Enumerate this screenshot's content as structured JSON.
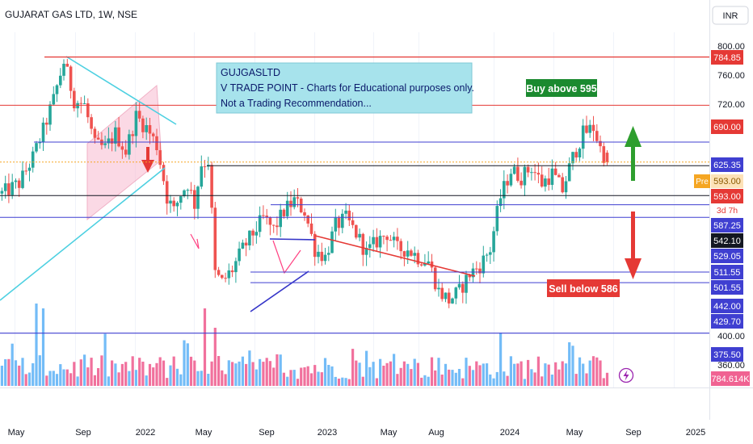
{
  "header": {
    "symbol_title": "GUJARAT GAS LTD, 1W, NSE",
    "currency": "INR"
  },
  "annotations": {
    "info_box": {
      "line1": "GUJGASLTD",
      "line2": "V TRADE POINT - Charts for Educational purposes only.",
      "line3": "Not a Trading Recommendation..."
    },
    "buy_label": "Buy above 595",
    "sell_label": "Sell below 586"
  },
  "colors": {
    "up": "#26a69a",
    "down": "#ef5350",
    "res": "#e53935",
    "sup": "#3f3fd1",
    "trend": "#4dd0e1",
    "channel": "#f8bbd0",
    "vol_up": "#64b5f6",
    "vol_down": "#f06292",
    "buy_bg": "#1b8a2f",
    "sell_bg": "#e53935",
    "info_bg": "#a7e3ec"
  },
  "chart_data": {
    "type": "candlestick",
    "y_scale": "log",
    "ylim": [
      345,
      810
    ],
    "y_ticks": [
      "800.00",
      "760.00",
      "720.00",
      "400.00",
      "360.00"
    ],
    "x_ticks": [
      "May",
      "Sep",
      "2022",
      "May",
      "Sep",
      "2023",
      "May",
      "Aug",
      "2024",
      "May",
      "Sep",
      "2025"
    ],
    "x_range": [
      "2021-04-01",
      "2025-03-15"
    ],
    "levels": [
      {
        "price": 784.85,
        "label": "784.85",
        "role": "resistance"
      },
      {
        "price": 690.0,
        "label": "690.00",
        "role": "resistance"
      },
      {
        "price": 625.35,
        "label": "625.35",
        "role": "support"
      },
      {
        "price": 593.0,
        "label": "593.00",
        "role": "last"
      },
      {
        "price": 587.25,
        "label": "587.25",
        "role": "support"
      },
      {
        "price": 542.1,
        "label": "542.10",
        "role": "neutral"
      },
      {
        "price": 529.05,
        "label": "529.05",
        "role": "support"
      },
      {
        "price": 511.55,
        "label": "511.55",
        "role": "support"
      },
      {
        "price": 501.55,
        "label": "501.55",
        "role": "support"
      },
      {
        "price": 442.0,
        "label": "442.00",
        "role": "support"
      },
      {
        "price": 429.7,
        "label": "429.70",
        "role": "support"
      },
      {
        "price": 375.5,
        "label": "375.50",
        "role": "support"
      }
    ],
    "premarket": {
      "tag": "Pre",
      "price": "593.00"
    },
    "countdown": "3d 7h",
    "volume_label": "784.614K",
    "price_anchors": [
      [
        "2021-04-05",
        545
      ],
      [
        "2021-05-10",
        560
      ],
      [
        "2021-06-07",
        600
      ],
      [
        "2021-06-28",
        645
      ],
      [
        "2021-07-19",
        700
      ],
      [
        "2021-08-09",
        775
      ],
      [
        "2021-08-30",
        700
      ],
      [
        "2021-09-20",
        690
      ],
      [
        "2021-10-11",
        620
      ],
      [
        "2021-11-01",
        615
      ],
      [
        "2021-11-22",
        640
      ],
      [
        "2021-12-13",
        610
      ],
      [
        "2022-01-03",
        670
      ],
      [
        "2022-01-24",
        650
      ],
      [
        "2022-02-14",
        620
      ],
      [
        "2022-03-07",
        540
      ],
      [
        "2022-03-21",
        520
      ],
      [
        "2022-04-04",
        545
      ],
      [
        "2022-04-18",
        560
      ],
      [
        "2022-05-02",
        530
      ],
      [
        "2022-05-16",
        590
      ],
      [
        "2022-05-30",
        595
      ],
      [
        "2022-06-13",
        440
      ],
      [
        "2022-06-27",
        430
      ],
      [
        "2022-07-18",
        445
      ],
      [
        "2022-08-08",
        470
      ],
      [
        "2022-08-29",
        490
      ],
      [
        "2022-09-19",
        510
      ],
      [
        "2022-10-10",
        495
      ],
      [
        "2022-10-31",
        520
      ],
      [
        "2022-11-21",
        535
      ],
      [
        "2022-12-12",
        520
      ],
      [
        "2023-01-02",
        470
      ],
      [
        "2023-01-23",
        460
      ],
      [
        "2023-02-13",
        500
      ],
      [
        "2023-03-06",
        510
      ],
      [
        "2023-03-27",
        490
      ],
      [
        "2023-04-17",
        465
      ],
      [
        "2023-05-08",
        480
      ],
      [
        "2023-05-29",
        490
      ],
      [
        "2023-06-19",
        470
      ],
      [
        "2023-07-10",
        470
      ],
      [
        "2023-07-31",
        460
      ],
      [
        "2023-08-21",
        455
      ],
      [
        "2023-09-11",
        420
      ],
      [
        "2023-10-02",
        410
      ],
      [
        "2023-10-23",
        420
      ],
      [
        "2023-11-13",
        440
      ],
      [
        "2023-12-04",
        450
      ],
      [
        "2023-12-25",
        470
      ],
      [
        "2024-01-15",
        540
      ],
      [
        "2024-02-05",
        580
      ],
      [
        "2024-02-26",
        570
      ],
      [
        "2024-03-18",
        585
      ],
      [
        "2024-04-08",
        560
      ],
      [
        "2024-04-29",
        575
      ],
      [
        "2024-05-20",
        550
      ],
      [
        "2024-06-10",
        600
      ],
      [
        "2024-07-01",
        640
      ],
      [
        "2024-07-22",
        650
      ],
      [
        "2024-08-05",
        615
      ],
      [
        "2024-08-19",
        594
      ]
    ],
    "volume_marks": [
      {
        "date": "2021-06-14",
        "rel": 0.85,
        "dir": "up"
      },
      {
        "date": "2021-06-28",
        "rel": 0.8,
        "dir": "up"
      },
      {
        "date": "2022-05-23",
        "rel": 0.8,
        "dir": "up"
      },
      {
        "date": "2022-06-13",
        "rel": 0.6,
        "dir": "down"
      },
      {
        "date": "2024-01-15",
        "rel": 0.55,
        "dir": "up"
      },
      {
        "date": "2024-06-03",
        "rel": 0.45,
        "dir": "down"
      }
    ]
  }
}
